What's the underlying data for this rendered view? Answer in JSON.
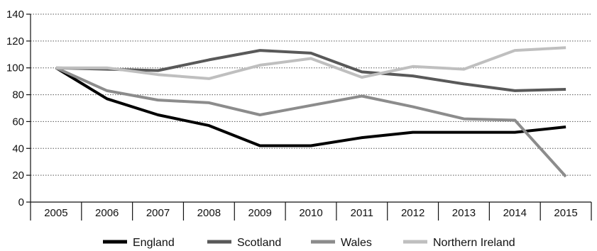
{
  "chart_data": {
    "type": "line",
    "title": "",
    "xlabel": "",
    "ylabel": "",
    "categories": [
      "2005",
      "2006",
      "2007",
      "2008",
      "2009",
      "2010",
      "2011",
      "2012",
      "2013",
      "2014",
      "2015"
    ],
    "ylim": [
      0,
      140
    ],
    "yticks": [
      0,
      20,
      40,
      60,
      80,
      100,
      120,
      140
    ],
    "grid": true,
    "legend_position": "bottom",
    "series": [
      {
        "name": "England",
        "color": "#000000",
        "values": [
          100,
          77,
          65,
          57,
          42,
          42,
          48,
          52,
          52,
          52,
          56
        ]
      },
      {
        "name": "Scotland",
        "color": "#595959",
        "values": [
          100,
          99,
          98,
          106,
          113,
          111,
          97,
          94,
          88,
          83,
          84
        ]
      },
      {
        "name": "Wales",
        "color": "#8c8c8c",
        "values": [
          100,
          83,
          76,
          74,
          65,
          72,
          79,
          71,
          62,
          61,
          19
        ]
      },
      {
        "name": "Northern Ireland",
        "color": "#bfbfbf",
        "values": [
          100,
          100,
          95,
          92,
          102,
          107,
          93,
          101,
          99,
          113,
          115
        ]
      }
    ]
  }
}
